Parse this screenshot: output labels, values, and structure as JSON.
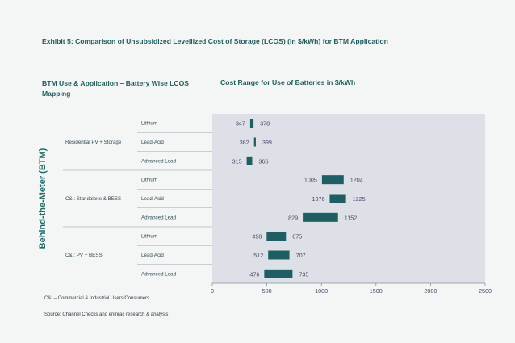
{
  "exhibit_title": "Exhibit 5: Comparison of Unsubsidized Levellized Cost of Storage (LCOS) (In $/kWh) for BTM Application",
  "left_heading": "BTM Use & Application – Battery Wise LCOS Mapping",
  "right_heading": "Cost Range for Use of Batteries in $/kWh",
  "vertical_label": "Behind-the-Meter (BTM)",
  "footnote_abbrev": "C&I – Commercial & Industrial Users/Consumers",
  "footnote_source": "Source: Channel Checks and eninrac research & analysis",
  "colors": {
    "bar": "#1f5e63",
    "plot_bg": "#dde0e7",
    "heading": "#1f5c5c",
    "label_text": "#2f4b57",
    "value_text": "#4a4a6a"
  },
  "chart_data": {
    "type": "bar",
    "orientation": "horizontal-floating",
    "title": "Cost Range for Use of Batteries in $/kWh",
    "xlim": [
      0,
      2500
    ],
    "x_ticks": [
      "0",
      "500",
      "1000",
      "1500",
      "2000",
      "2500"
    ],
    "groups": [
      {
        "name": "Residential PV + Storage",
        "rows": [
          {
            "label": "Lithium",
            "low": 347,
            "high": 378
          },
          {
            "label": "Lead-Acid",
            "low": 382,
            "high": 399
          },
          {
            "label": "Advanced Lead",
            "low": 315,
            "high": 366
          }
        ]
      },
      {
        "name": "C&I: Standalone & BESS",
        "rows": [
          {
            "label": "Lithium",
            "low": 1005,
            "high": 1204
          },
          {
            "label": "Lead-Acid",
            "low": 1076,
            "high": 1225
          },
          {
            "label": "Advanced Lead",
            "low": 829,
            "high": 1152
          }
        ]
      },
      {
        "name": "C&I: PV + BESS",
        "rows": [
          {
            "label": "Lithium",
            "low": 498,
            "high": 675
          },
          {
            "label": "Lead-Acid",
            "low": 512,
            "high": 707
          },
          {
            "label": "Advanced Lead",
            "low": 476,
            "high": 735
          }
        ]
      }
    ]
  }
}
